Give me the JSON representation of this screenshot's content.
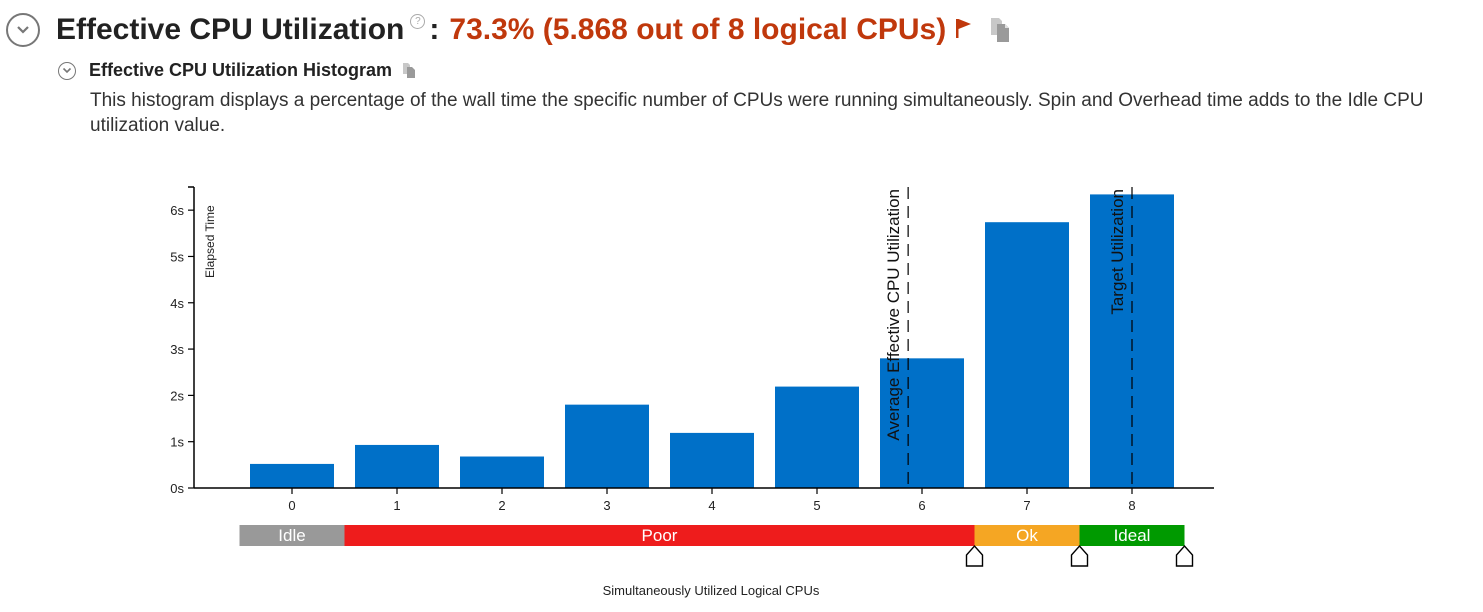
{
  "header": {
    "title": "Effective CPU Utilization",
    "help_symbol": "?",
    "colon": ":",
    "value": "73.3% (5.868 out of 8 logical CPUs)",
    "value_color": "#c0380c",
    "flag_icon": "flag-icon",
    "copy_icon": "copy-icon"
  },
  "section": {
    "title": "Effective CPU Utilization Histogram",
    "description": "This histogram displays a percentage of the wall time the specific number of CPUs were running simultaneously. Spin and Overhead time adds to the Idle CPU utilization value."
  },
  "chart_data": {
    "type": "bar",
    "categories": [
      "0",
      "1",
      "2",
      "3",
      "4",
      "5",
      "6",
      "7",
      "8"
    ],
    "values": [
      0.52,
      0.93,
      0.68,
      1.8,
      1.19,
      2.19,
      2.8,
      5.74,
      6.34
    ],
    "bar_color": "#0070c8",
    "ylabel": "Elapsed Time",
    "xlabel": "Simultaneously Utilized Logical CPUs",
    "y_ticks": [
      "0s",
      "1s",
      "2s",
      "3s",
      "4s",
      "5s",
      "6s"
    ],
    "ylim": [
      0,
      6.5
    ],
    "reference_lines": [
      {
        "label": "Average Effective CPU Utilization",
        "x": 5.868
      },
      {
        "label": "Target Utilization",
        "x": 8
      }
    ],
    "utilization_bands": [
      {
        "label": "Idle",
        "from": -0.5,
        "to": 0.5,
        "color": "#999999"
      },
      {
        "label": "Poor",
        "from": 0.5,
        "to": 6.5,
        "color": "#ee1c1c"
      },
      {
        "label": "Ok",
        "from": 6.5,
        "to": 7.5,
        "color": "#f5a623"
      },
      {
        "label": "Ideal",
        "from": 7.5,
        "to": 8.5,
        "color": "#009a00"
      }
    ],
    "threshold_markers": [
      6.5,
      7.5,
      8.5
    ]
  }
}
